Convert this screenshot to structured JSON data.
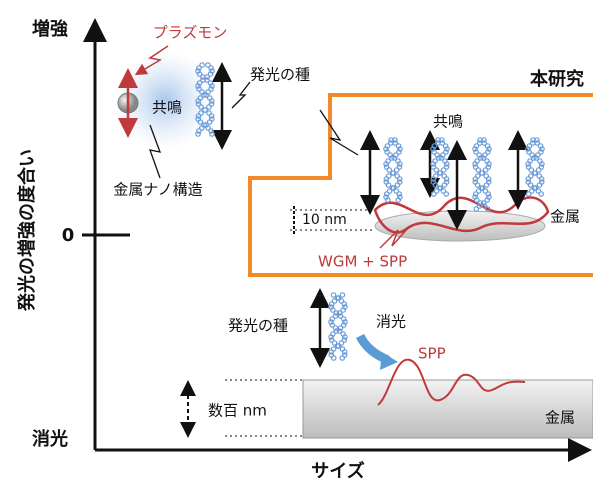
{
  "axes": {
    "y_top": "増強",
    "y_zero": "0",
    "y_bottom": "消光",
    "y_label": "発光の増強の度合い",
    "x_label": "サイズ"
  },
  "nanostructure": {
    "plasmon": "プラズモン",
    "resonance": "共鳴",
    "label": "金属ナノ構造",
    "emitter": "発光の種"
  },
  "this_work": {
    "title": "本研究",
    "resonance": "共鳴",
    "thickness": "10 nm",
    "metal": "金属",
    "mode": "WGM + SPP"
  },
  "quenching": {
    "emitter": "発光の種",
    "quench": "消光",
    "spp": "SPP",
    "thickness": "数百 nm",
    "metal": "金属"
  }
}
